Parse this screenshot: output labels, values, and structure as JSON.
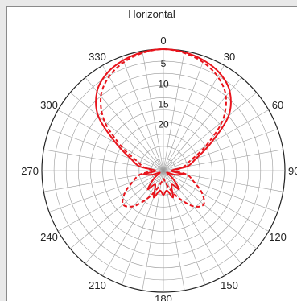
{
  "chart_data": {
    "type": "polar-line",
    "title": "Horizontal",
    "angle_labels": [
      "0",
      "30",
      "60",
      "90",
      "120",
      "150",
      "180",
      "210",
      "240",
      "270",
      "300",
      "330"
    ],
    "radial_labels": [
      "5",
      "10",
      "15",
      "20"
    ],
    "radial_range_db": [
      0,
      30
    ],
    "grid": true,
    "colors": {
      "series": "#e8141c",
      "grid": "#9a9a9a",
      "outer_ring": "#222222"
    },
    "series": [
      {
        "style": "solid",
        "points": [
          {
            "angle": 0,
            "value": 0
          },
          {
            "angle": 10,
            "value": 0.3
          },
          {
            "angle": 20,
            "value": 1
          },
          {
            "angle": 30,
            "value": 2.2
          },
          {
            "angle": 40,
            "value": 4.5
          },
          {
            "angle": 50,
            "value": 9
          },
          {
            "angle": 60,
            "value": 16.5
          },
          {
            "angle": 70,
            "value": 21.5
          },
          {
            "angle": 80,
            "value": 24
          },
          {
            "angle": 90,
            "value": 28
          },
          {
            "angle": 100,
            "value": 25
          },
          {
            "angle": 110,
            "value": 27
          },
          {
            "angle": 120,
            "value": 29
          },
          {
            "angle": 130,
            "value": 27
          },
          {
            "angle": 140,
            "value": 24
          },
          {
            "angle": 150,
            "value": 26
          },
          {
            "angle": 160,
            "value": 23
          },
          {
            "angle": 170,
            "value": 25
          },
          {
            "angle": 180,
            "value": 24
          },
          {
            "angle": 190,
            "value": 25
          },
          {
            "angle": 200,
            "value": 23
          },
          {
            "angle": 210,
            "value": 26
          },
          {
            "angle": 220,
            "value": 24
          },
          {
            "angle": 230,
            "value": 27
          },
          {
            "angle": 240,
            "value": 29
          },
          {
            "angle": 250,
            "value": 27
          },
          {
            "angle": 260,
            "value": 25
          },
          {
            "angle": 270,
            "value": 28
          },
          {
            "angle": 280,
            "value": 24
          },
          {
            "angle": 290,
            "value": 21.5
          },
          {
            "angle": 300,
            "value": 16.5
          },
          {
            "angle": 310,
            "value": 9
          },
          {
            "angle": 320,
            "value": 4.5
          },
          {
            "angle": 330,
            "value": 2.2
          },
          {
            "angle": 340,
            "value": 1
          },
          {
            "angle": 350,
            "value": 0.3
          }
        ]
      },
      {
        "style": "dashed",
        "points": [
          {
            "angle": 0,
            "value": 0
          },
          {
            "angle": 10,
            "value": 0.5
          },
          {
            "angle": 20,
            "value": 1.5
          },
          {
            "angle": 30,
            "value": 3.2
          },
          {
            "angle": 40,
            "value": 6
          },
          {
            "angle": 50,
            "value": 11
          },
          {
            "angle": 60,
            "value": 18
          },
          {
            "angle": 70,
            "value": 23
          },
          {
            "angle": 80,
            "value": 25
          },
          {
            "angle": 90,
            "value": 27
          },
          {
            "angle": 100,
            "value": 24
          },
          {
            "angle": 110,
            "value": 22
          },
          {
            "angle": 120,
            "value": 19
          },
          {
            "angle": 130,
            "value": 17
          },
          {
            "angle": 140,
            "value": 18.5
          },
          {
            "angle": 150,
            "value": 22
          },
          {
            "angle": 160,
            "value": 25
          },
          {
            "angle": 170,
            "value": 27
          },
          {
            "angle": 180,
            "value": 28
          },
          {
            "angle": 190,
            "value": 27
          },
          {
            "angle": 200,
            "value": 25
          },
          {
            "angle": 210,
            "value": 22
          },
          {
            "angle": 220,
            "value": 18.5
          },
          {
            "angle": 230,
            "value": 17
          },
          {
            "angle": 240,
            "value": 19
          },
          {
            "angle": 250,
            "value": 22
          },
          {
            "angle": 260,
            "value": 24
          },
          {
            "angle": 270,
            "value": 27
          },
          {
            "angle": 280,
            "value": 25
          },
          {
            "angle": 290,
            "value": 23
          },
          {
            "angle": 300,
            "value": 18
          },
          {
            "angle": 310,
            "value": 11
          },
          {
            "angle": 320,
            "value": 6
          },
          {
            "angle": 330,
            "value": 3.2
          },
          {
            "angle": 340,
            "value": 1.5
          },
          {
            "angle": 350,
            "value": 0.5
          }
        ]
      }
    ]
  }
}
